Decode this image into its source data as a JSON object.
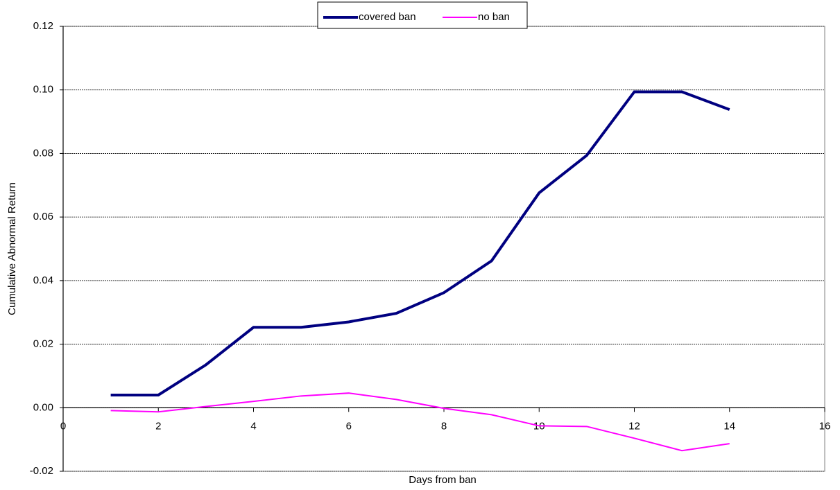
{
  "chart_data": {
    "type": "line",
    "x_label": "Days from ban",
    "y_label": "Cumulative Abnormal Return",
    "xlim": [
      0,
      16
    ],
    "xticks": [
      0,
      2,
      4,
      6,
      8,
      10,
      12,
      14,
      16
    ],
    "ylim": [
      -0.02,
      0.12
    ],
    "yticks": [
      {
        "value": -0.02,
        "label": "-0.02"
      },
      {
        "value": 0,
        "label": "0.00"
      },
      0.02,
      0.04,
      0.06,
      0.08,
      {
        "value": 0.1,
        "label": "0.10"
      },
      0.12
    ],
    "grid": true,
    "legend": "top",
    "x": [
      1,
      2,
      3,
      4,
      5,
      6,
      7,
      8,
      9,
      10,
      11,
      12,
      13,
      14
    ],
    "series": [
      {
        "name": "covered ban",
        "color": "#000080",
        "values": [
          0.004,
          0.004,
          0.0135,
          0.0253,
          0.0253,
          0.027,
          0.0297,
          0.0362,
          0.0462,
          0.0676,
          0.0794,
          0.0994,
          0.0994,
          0.0938
        ]
      },
      {
        "name": "no ban",
        "color": "#ff00ff",
        "values": [
          -0.0009,
          -0.0013,
          0.0004,
          0.002,
          0.0037,
          0.0046,
          0.0026,
          -0.0002,
          -0.0022,
          -0.0057,
          -0.0059,
          -0.0096,
          -0.0135,
          -0.0113
        ]
      }
    ]
  }
}
